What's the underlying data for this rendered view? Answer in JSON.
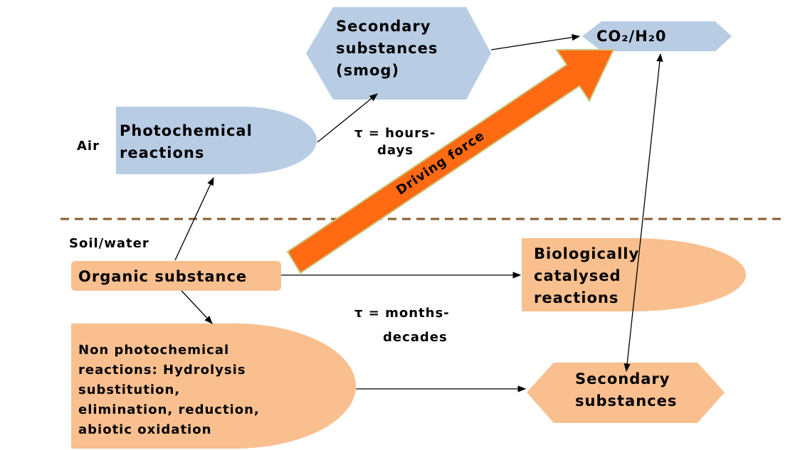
{
  "nodes": [
    {
      "id": "smog",
      "lines": [
        "Secondary",
        "substances",
        "(smog)"
      ]
    },
    {
      "id": "co2",
      "lines": [
        "CO₂/H₂0"
      ]
    },
    {
      "id": "photo",
      "lines": [
        "Photochemical",
        "reactions"
      ]
    },
    {
      "id": "organic",
      "lines": [
        "Organic substance"
      ]
    },
    {
      "id": "bio",
      "lines": [
        "Biologically",
        "catalysed",
        "reactions"
      ]
    },
    {
      "id": "nonphoto",
      "lines": [
        "Non photochemical",
        "reactions: Hydrolysis",
        "substitution,",
        "elimination, reduction,",
        "abiotic oxidation"
      ]
    },
    {
      "id": "secondary",
      "lines": [
        "Secondary",
        "substances"
      ]
    }
  ],
  "labels": {
    "air": "Air",
    "soil": "Soil/water",
    "tau_air": [
      "τ = hours-",
      "days"
    ],
    "tau_soil": [
      "τ = months-",
      "decades"
    ],
    "driving": "Driving force"
  }
}
